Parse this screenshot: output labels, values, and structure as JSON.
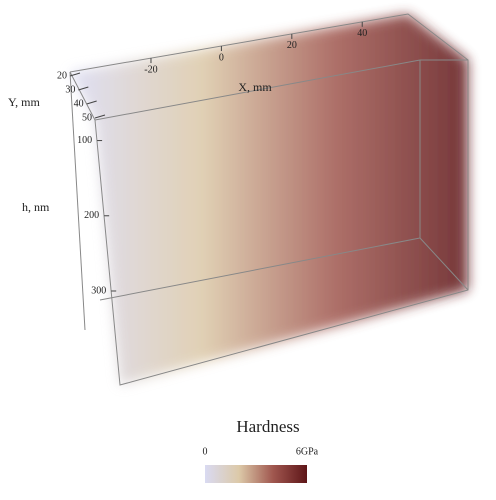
{
  "chart_data": {
    "type": "volume",
    "x_label": "X, mm",
    "y_label": "Y, mm",
    "z_label": "h, nm",
    "xlim": [
      -43,
      53
    ],
    "xticks": [
      -20,
      0,
      20,
      40
    ],
    "ylim": [
      20,
      50
    ],
    "yticks": [
      20,
      30,
      40,
      50
    ],
    "zlim": [
      70,
      425
    ],
    "zticks": [
      100,
      200,
      300
    ],
    "colorbar": {
      "title": "Hardness",
      "lim": [
        0,
        6
      ],
      "ticks": [
        0,
        {
          "value": 6,
          "label": "6GPa"
        }
      ],
      "colors": [
        "#d9daf2",
        "#dcc9a8",
        "#a0574f",
        "#5e1518"
      ]
    }
  }
}
